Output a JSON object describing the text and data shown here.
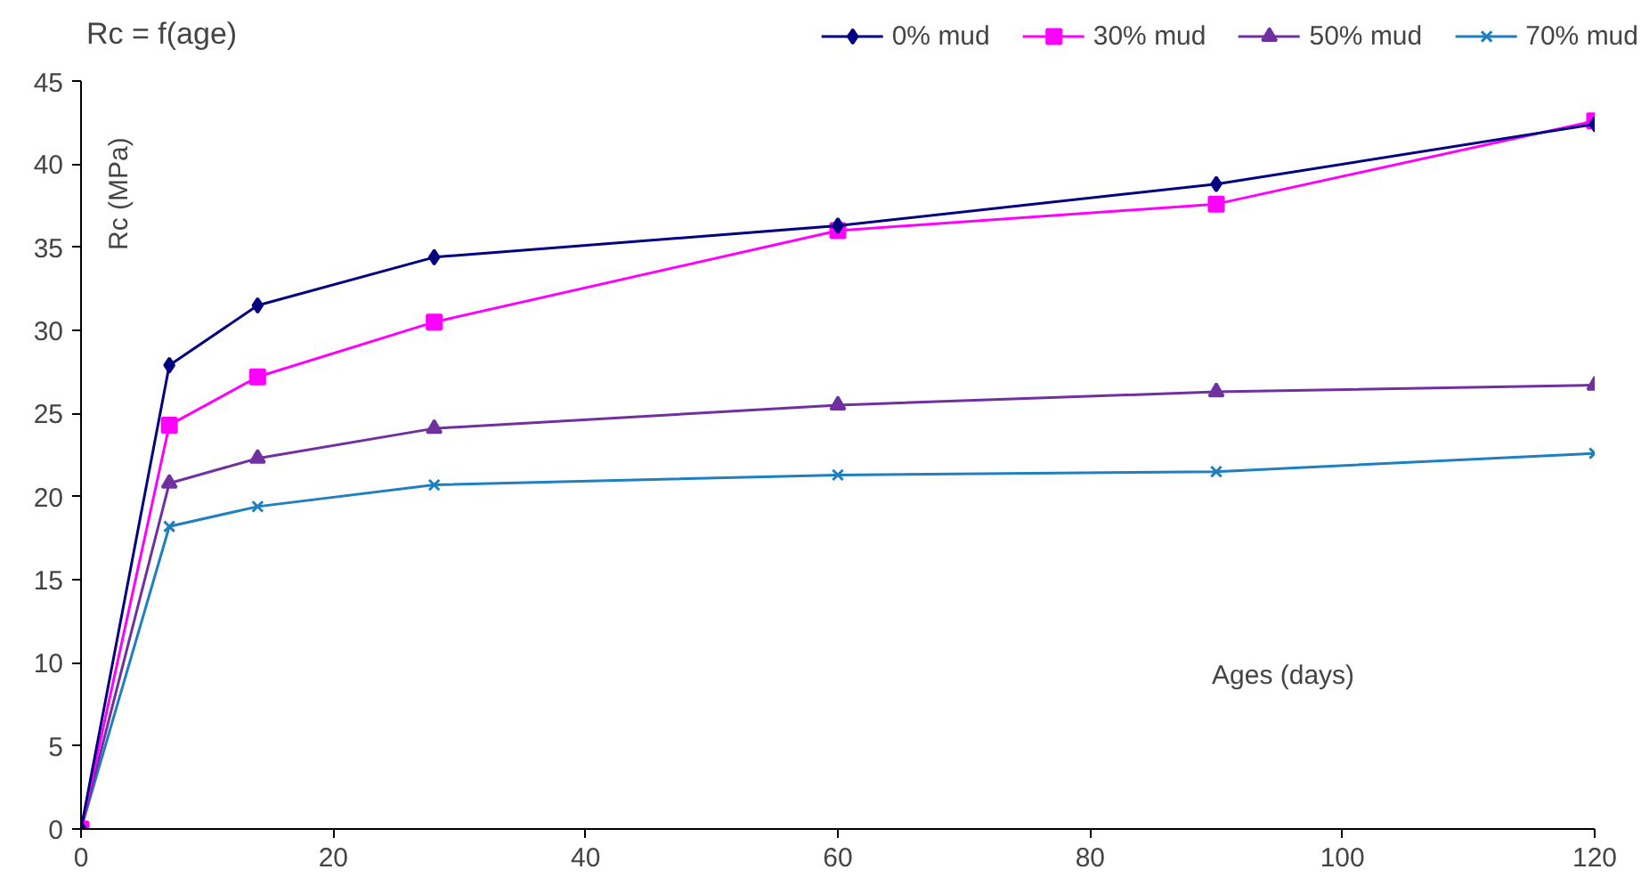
{
  "chart_data": {
    "type": "line",
    "title": "Rc = f(age)",
    "xlabel": "Ages (days)",
    "ylabel": "Rc (MPa)",
    "x": [
      0,
      7,
      14,
      28,
      60,
      90,
      120
    ],
    "series": [
      {
        "name": "0% mud",
        "color": "#000080",
        "marker": "diamond",
        "values": [
          0,
          27.9,
          31.5,
          34.4,
          36.3,
          38.8,
          42.4
        ]
      },
      {
        "name": "30% mud",
        "color": "#ff00ff",
        "marker": "square",
        "values": [
          0,
          24.3,
          27.2,
          30.5,
          36.0,
          37.6,
          42.6
        ]
      },
      {
        "name": "50% mud",
        "color": "#7030a0",
        "marker": "triangle",
        "values": [
          0,
          20.8,
          22.3,
          24.1,
          25.5,
          26.3,
          26.7
        ]
      },
      {
        "name": "70% mud",
        "color": "#1f7fbf",
        "marker": "cross",
        "values": [
          0,
          18.2,
          19.4,
          20.7,
          21.3,
          21.5,
          22.6
        ]
      }
    ],
    "xlim": [
      0,
      120
    ],
    "xticks": [
      0,
      20,
      40,
      60,
      80,
      100,
      120
    ],
    "ylim": [
      0,
      45
    ],
    "yticks": [
      0,
      5,
      10,
      15,
      20,
      25,
      30,
      35,
      40,
      45
    ],
    "grid": false,
    "legend": "top"
  }
}
